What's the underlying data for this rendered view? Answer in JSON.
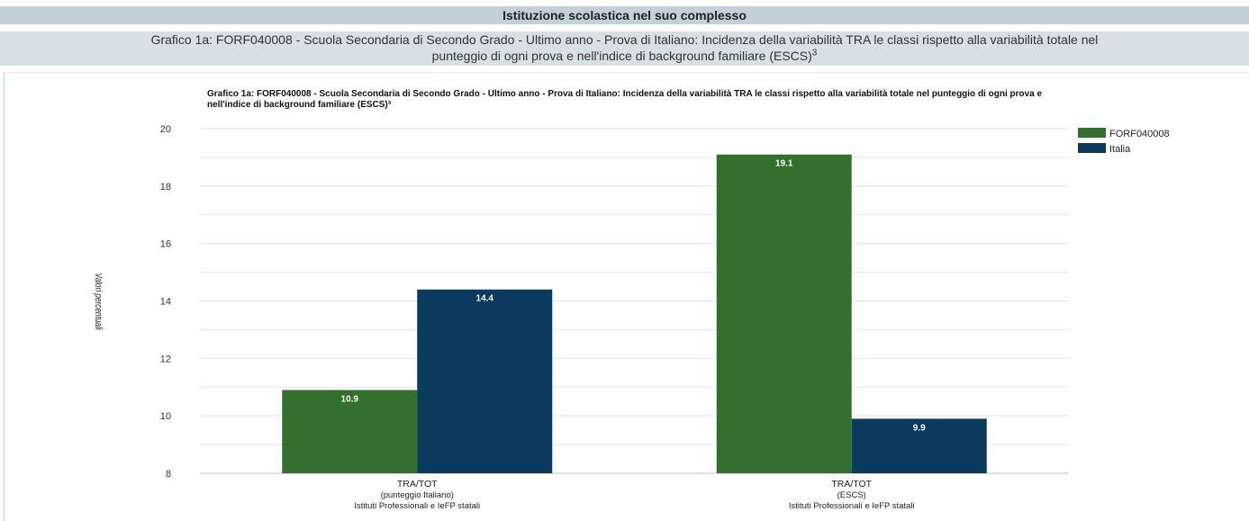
{
  "header": {
    "title": "Istituzione scolastica nel suo complesso",
    "subtitle_line1": "Grafico 1a: FORF040008 - Scuola Secondaria di Secondo Grado - Ultimo anno - Prova di Italiano: Incidenza della variabilità TRA le classi rispetto alla variabilità totale nel",
    "subtitle_line2": "punteggio di ogni prova e nell'indice di background familiare (ESCS)",
    "subtitle_sup": "3"
  },
  "chart_data": {
    "type": "bar",
    "title": "Grafico 1a: FORF040008 - Scuola Secondaria di Secondo Grado - Ultimo anno - Prova di Italiano: Incidenza della variabilità TRA le classi rispetto alla variabilità totale nel punteggio di ogni prova e nell'indice di background familiare (ESCS)³",
    "ylabel": "Valori percentuali",
    "xlabel": "",
    "ylim": [
      8,
      20
    ],
    "yticks": [
      8,
      10,
      12,
      14,
      16,
      18,
      20
    ],
    "grid": true,
    "legend_position": "top-right",
    "categories": [
      [
        "TRA/TOT",
        "(punteggio Italiano)",
        "Istituti Professionali e IeFP statali"
      ],
      [
        "TRA/TOT",
        "(ESCS)",
        "Istituti Professionali e IeFP statali"
      ]
    ],
    "series": [
      {
        "name": "FORF040008",
        "color": "#33702e",
        "values": [
          10.9,
          19.1
        ]
      },
      {
        "name": "Italia",
        "color": "#0b3a5f",
        "values": [
          14.4,
          9.9
        ]
      }
    ]
  }
}
